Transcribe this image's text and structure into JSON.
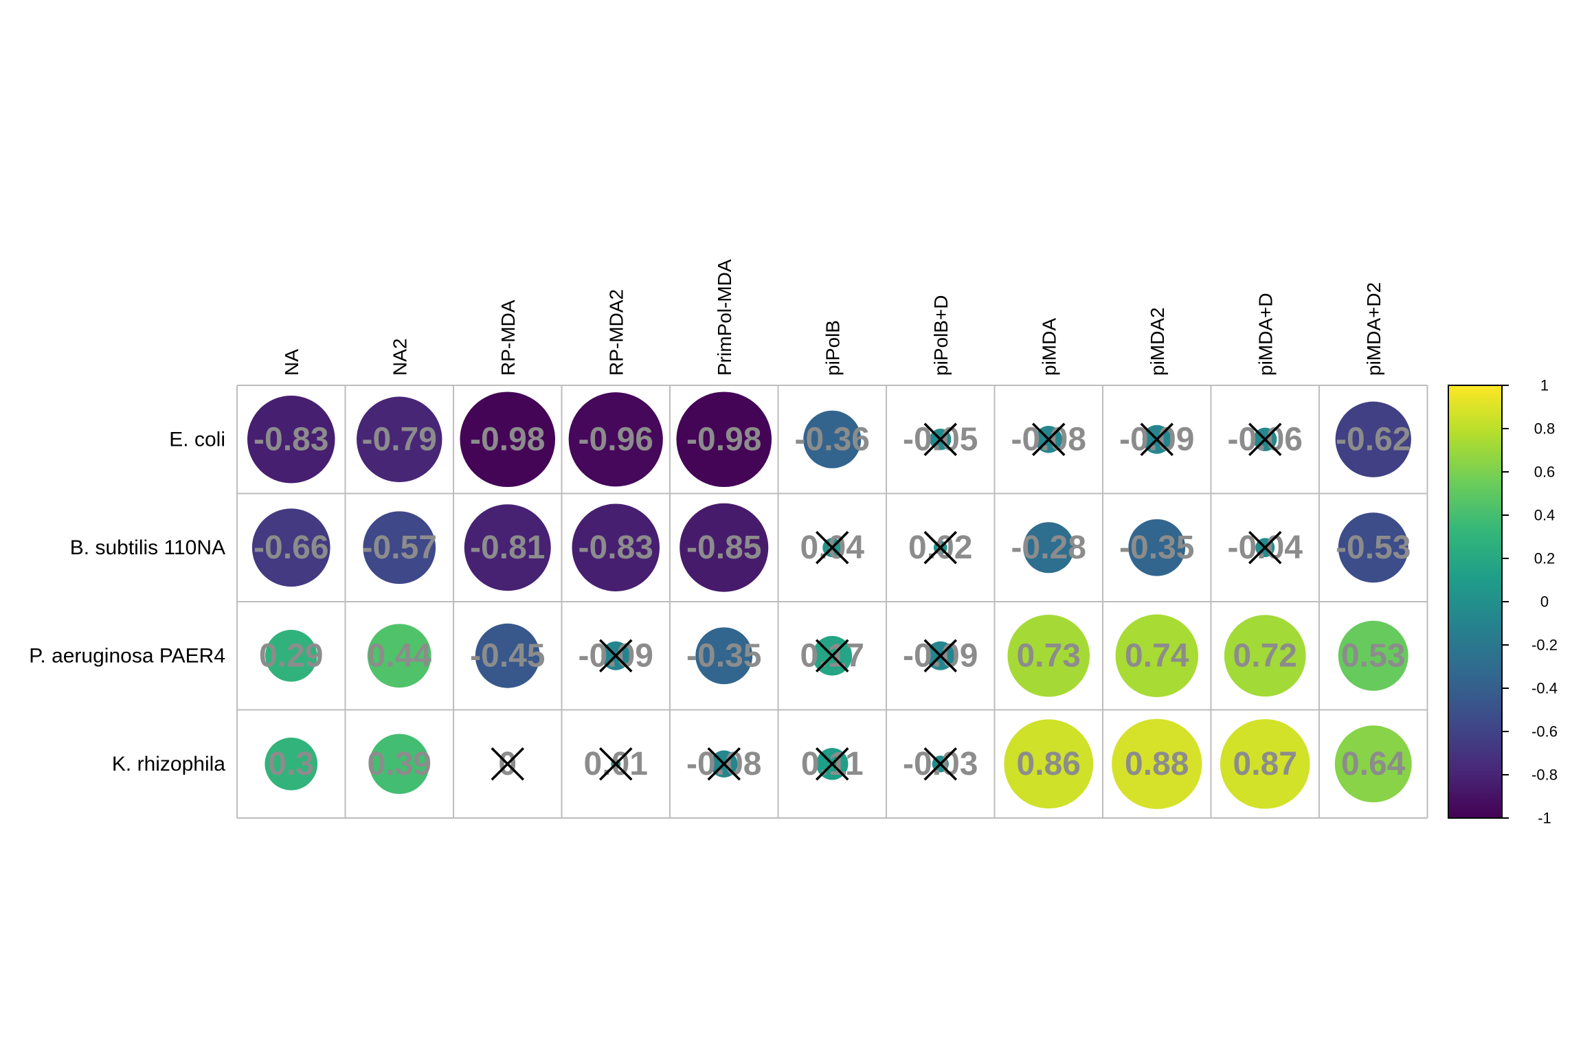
{
  "chart_data": {
    "type": "heatmap",
    "title": "",
    "rows": [
      "E. coli",
      "B. subtilis 110NA",
      "P. aeruginosa PAER4",
      "K. rhizophila"
    ],
    "columns": [
      "NA",
      "NA2",
      "RP-MDA",
      "RP-MDA2",
      "PrimPol-MDA",
      "piPolB",
      "piPolB+D",
      "piMDA",
      "piMDA2",
      "piMDA+D",
      "piMDA+D2"
    ],
    "values": [
      [
        -0.83,
        -0.79,
        -0.98,
        -0.96,
        -0.98,
        -0.36,
        -0.05,
        -0.08,
        -0.09,
        -0.06,
        -0.62
      ],
      [
        -0.66,
        -0.57,
        -0.81,
        -0.83,
        -0.85,
        0.04,
        0.02,
        -0.28,
        -0.35,
        -0.04,
        -0.53
      ],
      [
        0.29,
        0.44,
        -0.45,
        -0.09,
        -0.35,
        0.17,
        -0.09,
        0.73,
        0.74,
        0.72,
        0.53
      ],
      [
        0.3,
        0.39,
        0,
        0.01,
        -0.08,
        0.11,
        -0.03,
        0.86,
        0.88,
        0.87,
        0.64
      ]
    ],
    "labels": [
      [
        "-0.83",
        "-0.79",
        "-0.98",
        "-0.96",
        "-0.98",
        "-0.36",
        "-0.05",
        "-0.08",
        "-0.09",
        "-0.06",
        "-0.62"
      ],
      [
        "-0.66",
        "-0.57",
        "-0.81",
        "-0.83",
        "-0.85",
        "0.04",
        "0.02",
        "-0.28",
        "-0.35",
        "-0.04",
        "-0.53"
      ],
      [
        "0.29",
        "0.44",
        "-0.45",
        "-0.09",
        "-0.35",
        "0.17",
        "-0.09",
        "0.73",
        "0.74",
        "0.72",
        "0.53"
      ],
      [
        "0.3",
        "0.39",
        "0",
        "0.01",
        "-0.08",
        "0.11",
        "-0.03",
        "0.86",
        "0.88",
        "0.87",
        "0.64"
      ]
    ],
    "crossed": [
      [
        false,
        false,
        false,
        false,
        false,
        false,
        true,
        true,
        true,
        true,
        false
      ],
      [
        false,
        false,
        false,
        false,
        false,
        true,
        true,
        false,
        false,
        true,
        false
      ],
      [
        false,
        false,
        false,
        true,
        false,
        true,
        true,
        false,
        false,
        false,
        false
      ],
      [
        false,
        false,
        true,
        true,
        true,
        true,
        true,
        false,
        false,
        false,
        false
      ]
    ],
    "colorbar": {
      "ticks": [
        "1",
        "0.8",
        "0.6",
        "0.4",
        "0.2",
        "0",
        "-0.2",
        "-0.4",
        "-0.6",
        "-0.8",
        "-1"
      ],
      "range": [
        -1,
        1
      ],
      "palette": "viridis",
      "colors": [
        "#440154",
        "#482878",
        "#3E4A89",
        "#31688E",
        "#26828E",
        "#1F9E89",
        "#35B779",
        "#6DCD59",
        "#B4DE2C",
        "#FDE725"
      ]
    },
    "cell_text_color": "#8c8c8c",
    "grid_color": "#bdbdbd",
    "cross_color": "#000000"
  }
}
